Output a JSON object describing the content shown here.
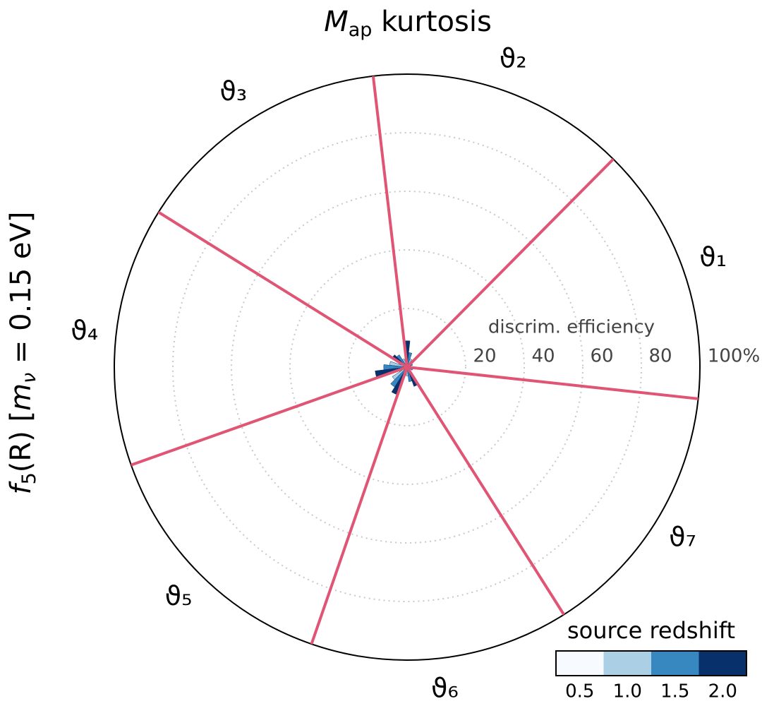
{
  "chart_data": {
    "type": "polar_bar",
    "title": [
      "M",
      "ap",
      " kurtosis"
    ],
    "ylabel": [
      "f",
      "5",
      "(R) [",
      "m",
      "ν",
      " = 0.15 eV]"
    ],
    "categories": [
      "ϑ₁",
      "ϑ₂",
      "ϑ₃",
      "ϑ₄",
      "ϑ₅",
      "ϑ₆",
      "ϑ₇"
    ],
    "r_label": "discrim. efficiency",
    "rlim": [
      0,
      100
    ],
    "rticks": [
      20,
      40,
      60,
      80,
      {
        "value": 100,
        "label": "100%"
      }
    ],
    "sector_line_color": "#e05474",
    "legend_title": "source redshift",
    "series": [
      {
        "name": "0.5",
        "color": "#f7fbff",
        "values": [
          1,
          2,
          2,
          3,
          3,
          2,
          1
        ]
      },
      {
        "name": "1.0",
        "color": "#abd0e6",
        "values": [
          1,
          3,
          3,
          6,
          6,
          3,
          1
        ]
      },
      {
        "name": "1.5",
        "color": "#3787c0",
        "values": [
          2,
          5,
          5,
          8,
          8,
          5,
          2
        ]
      },
      {
        "name": "2.0",
        "color": "#08306b",
        "values": [
          2,
          9,
          6,
          11,
          10,
          7,
          2
        ]
      }
    ]
  }
}
